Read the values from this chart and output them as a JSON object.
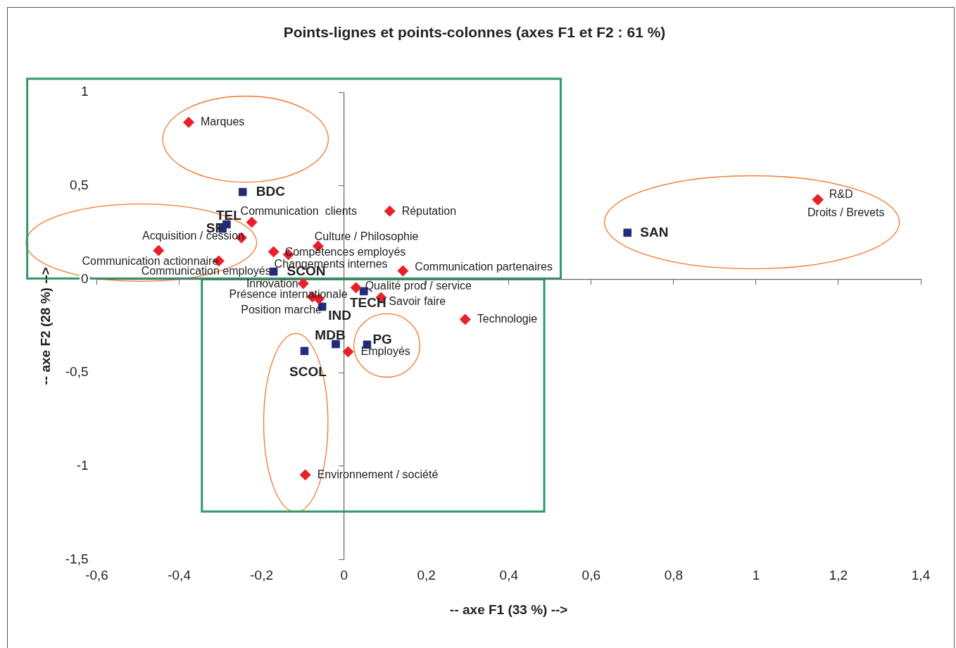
{
  "chart_data": {
    "type": "scatter",
    "title": "Points-lignes et points-colonnes (axes F1 et F2 : 61 %)",
    "xlabel": "-- axe F1 (33 %) -->",
    "ylabel": "-- axe F2 (28 %) -->",
    "series": [
      {
        "color": "#e8202a",
        "marker": "diamond",
        "x": [
          -0.377,
          -0.224,
          -0.249,
          -0.45,
          -0.304,
          -0.063,
          -0.135,
          -0.171,
          0.143,
          0.111,
          -0.099,
          -0.077,
          -0.061,
          0.029,
          0.09,
          0.294,
          0.01,
          -0.094,
          1.15,
          1.15
        ],
        "values": [
          0.84,
          0.305,
          0.222,
          0.154,
          0.098,
          0.177,
          0.132,
          0.147,
          0.045,
          0.365,
          -0.023,
          -0.094,
          -0.105,
          -0.045,
          -0.098,
          -0.215,
          -0.388,
          -1.047,
          0.426,
          0.426
        ]
      },
      {
        "color": "#232a7a",
        "marker": "square",
        "x": [
          -0.246,
          -0.285,
          -0.295,
          -0.171,
          0.048,
          -0.053,
          -0.02,
          0.056,
          -0.096,
          0.688
        ],
        "values": [
          0.467,
          0.294,
          0.271,
          0.041,
          -0.064,
          -0.147,
          -0.347,
          -0.35,
          -0.384,
          0.249
        ]
      }
    ],
    "annotations": [
      {
        "text": "Marques",
        "x": -0.377,
        "y": 0.84
      },
      {
        "text": "Communication  clients",
        "x": -0.224,
        "y": 0.305
      },
      {
        "text": "Acquisition / cession",
        "x": -0.249,
        "y": 0.222
      },
      {
        "text": "Communication actionnaire",
        "x": -0.45,
        "y": 0.154
      },
      {
        "text": "Communication employés",
        "x": -0.304,
        "y": 0.098
      },
      {
        "text": "Culture / Philosophie",
        "x": -0.063,
        "y": 0.177
      },
      {
        "text": "Compétences employés",
        "x": -0.135,
        "y": 0.132
      },
      {
        "text": "Changements internes",
        "x": -0.171,
        "y": 0.147
      },
      {
        "text": "Communication partenaires",
        "x": 0.143,
        "y": 0.045
      },
      {
        "text": "Réputation",
        "x": 0.111,
        "y": 0.365
      },
      {
        "text": "Innovation",
        "x": -0.099,
        "y": -0.023
      },
      {
        "text": "Présence internationale",
        "x": -0.077,
        "y": -0.094
      },
      {
        "text": "Position marché",
        "x": -0.061,
        "y": -0.105
      },
      {
        "text": "Qualité prod / service",
        "x": 0.029,
        "y": -0.045
      },
      {
        "text": "Savoir faire",
        "x": 0.09,
        "y": -0.098
      },
      {
        "text": "Technologie",
        "x": 0.294,
        "y": -0.215
      },
      {
        "text": "Employés",
        "x": 0.01,
        "y": -0.388
      },
      {
        "text": "Environnement / société",
        "x": -0.094,
        "y": -1.047
      },
      {
        "text": "R&D",
        "x": 1.15,
        "y": 0.426
      },
      {
        "text": "Droits / Brevets",
        "x": 1.15,
        "y": 0.426
      },
      {
        "text": "BDC",
        "x": -0.246,
        "y": 0.467
      },
      {
        "text": "TEL",
        "x": -0.285,
        "y": 0.294
      },
      {
        "text": "SF",
        "x": -0.295,
        "y": 0.271
      },
      {
        "text": "SCON",
        "x": -0.171,
        "y": 0.041
      },
      {
        "text": "TECH",
        "x": 0.048,
        "y": -0.064
      },
      {
        "text": "IND",
        "x": -0.053,
        "y": -0.147
      },
      {
        "text": "MDB",
        "x": -0.02,
        "y": -0.347
      },
      {
        "text": "PG",
        "x": 0.056,
        "y": -0.35
      },
      {
        "text": "SCOL",
        "x": -0.096,
        "y": -0.384
      },
      {
        "text": "SAN",
        "x": 0.688,
        "y": 0.249
      }
    ],
    "xlim": [
      -0.6,
      1.4
    ],
    "xticks": [
      {
        "value": -0.6,
        "label": "-0,6"
      },
      {
        "value": -0.4,
        "label": "-0,4"
      },
      {
        "value": -0.2,
        "label": "-0,2"
      },
      0,
      {
        "value": 0.2,
        "label": "0,2"
      },
      {
        "value": 0.4,
        "label": "0,4"
      },
      {
        "value": 0.6,
        "label": "0,6"
      },
      {
        "value": 0.8,
        "label": "0,8"
      },
      1,
      {
        "value": 1.2,
        "label": "1,2"
      },
      {
        "value": 1.4,
        "label": "1,4"
      }
    ],
    "ylim": [
      -1.5,
      1
    ],
    "yticks": [
      {
        "value": -1.5,
        "label": "-1,5"
      },
      -1,
      {
        "value": -0.5,
        "label": "-0,5"
      },
      0,
      {
        "value": 0.5,
        "label": "0,5"
      },
      1
    ],
    "legend": false
  }
}
